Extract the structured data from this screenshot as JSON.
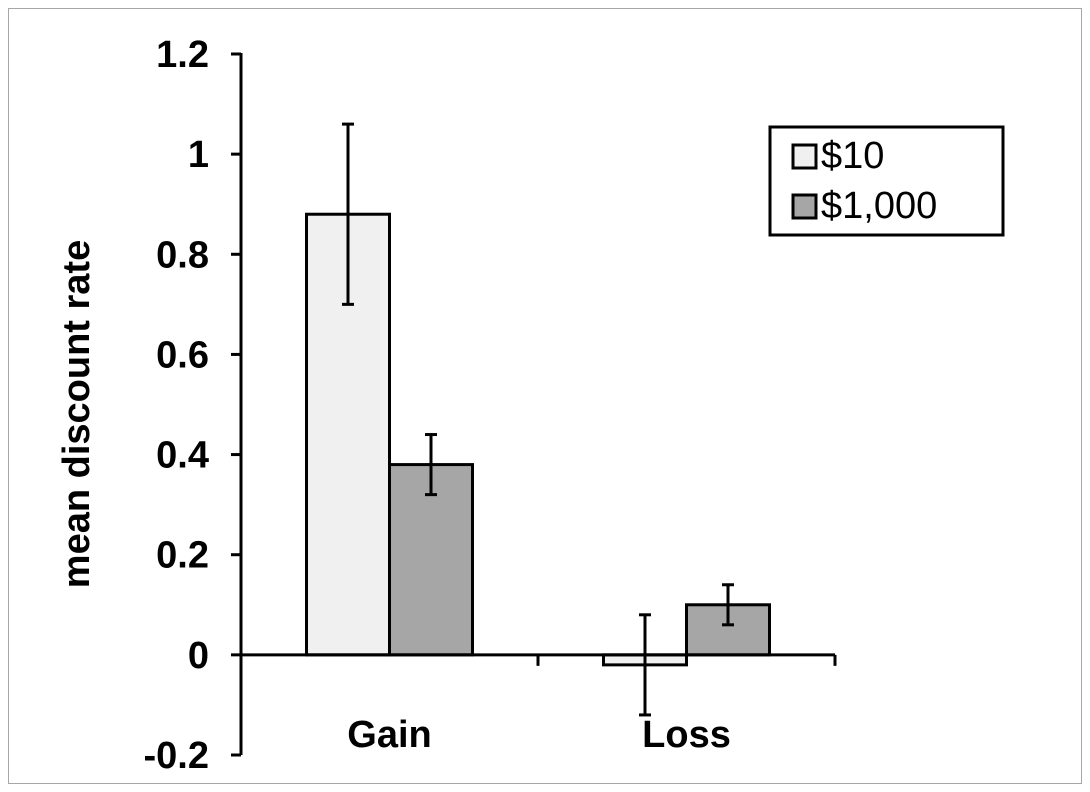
{
  "chart_data": {
    "type": "bar",
    "title": "",
    "xlabel": "",
    "ylabel": "mean discount rate",
    "ylim": [
      -0.2,
      1.2
    ],
    "yticks": [
      "-0.2",
      "0",
      "0.2",
      "0.4",
      "0.6",
      "0.8",
      "1",
      "1.2"
    ],
    "ytick_values": [
      -0.2,
      0,
      0.2,
      0.4,
      0.6,
      0.8,
      1.0,
      1.2
    ],
    "categories": [
      "Gain",
      "Loss"
    ],
    "series": [
      {
        "name": "$10",
        "values": [
          0.88,
          -0.02
        ],
        "errors": [
          0.18,
          0.1
        ],
        "color": "#f0f0f0"
      },
      {
        "name": "$1,000",
        "values": [
          0.38,
          0.1
        ],
        "errors": [
          0.06,
          0.04
        ],
        "color": "#a6a6a6"
      }
    ],
    "legend_position": "top-right",
    "grid": false
  }
}
